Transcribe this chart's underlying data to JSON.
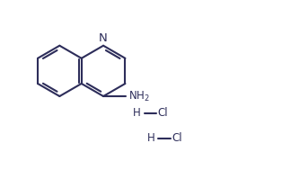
{
  "bg_color": "#ffffff",
  "bond_color": "#2d2d5a",
  "text_color": "#2d2d5a",
  "lw": 1.5,
  "fs": 8.5,
  "N_label": "N",
  "NH2_label": "NH$_2$",
  "H_label": "H",
  "Cl_label": "Cl",
  "xlim": [
    0,
    10
  ],
  "ylim": [
    0,
    6
  ]
}
